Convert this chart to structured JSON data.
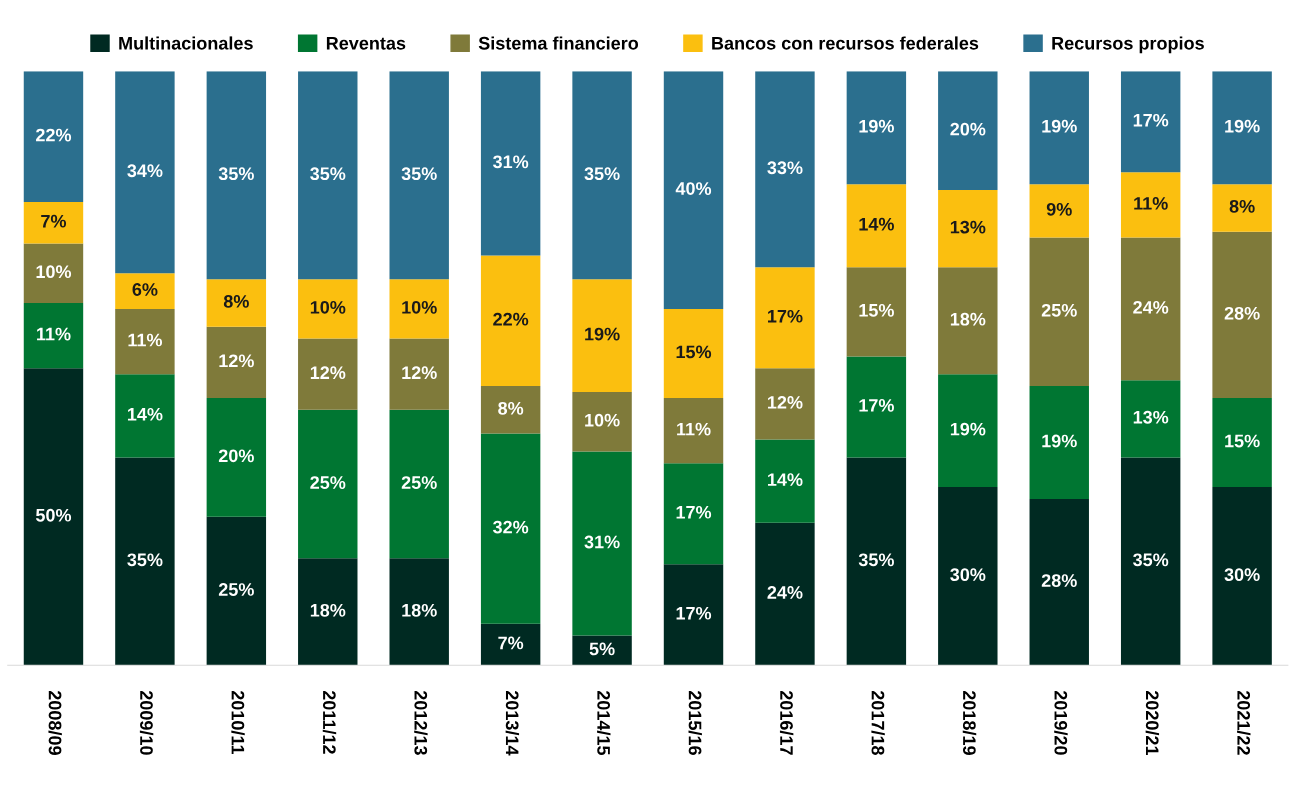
{
  "chart_data": {
    "type": "bar",
    "stacked": true,
    "ylim": [
      0,
      100
    ],
    "tick_labels": "x",
    "legend": "top",
    "grid": false,
    "categories": [
      "2008/09",
      "2009/10",
      "2010/11",
      "2011/12",
      "2012/13",
      "2013/14",
      "2014/15",
      "2015/16",
      "2016/17",
      "2017/18",
      "2018/19",
      "2019/20",
      "2020/21",
      "2021/22"
    ],
    "series": [
      {
        "name": "Multinacionales",
        "color": "#002a22",
        "values": [
          50,
          35,
          25,
          18,
          18,
          7,
          5,
          17,
          24,
          35,
          30,
          28,
          35,
          30
        ],
        "value_labels": [
          "50%",
          "35%",
          "25%",
          "18%",
          "18%",
          "7%",
          "5%",
          "17%",
          "24%",
          "35%",
          "30%",
          "28%",
          "35%",
          "30%"
        ]
      },
      {
        "name": "Reventas",
        "color": "#007632",
        "values": [
          11,
          14,
          20,
          25,
          25,
          32,
          31,
          17,
          14,
          17,
          19,
          19,
          13,
          15
        ],
        "value_labels": [
          "11%",
          "14%",
          "20%",
          "25%",
          "25%",
          "32%",
          "31%",
          "17%",
          "14%",
          "17%",
          "19%",
          "19%",
          "13%",
          "15%"
        ]
      },
      {
        "name": "Sistema financiero",
        "color": "#7f7a3a",
        "values": [
          10,
          11,
          12,
          12,
          12,
          8,
          10,
          11,
          12,
          15,
          18,
          25,
          24,
          28
        ],
        "value_labels": [
          "10%",
          "11%",
          "12%",
          "12%",
          "12%",
          "8%",
          "10%",
          "11%",
          "12%",
          "15%",
          "18%",
          "25%",
          "24%",
          "28%"
        ]
      },
      {
        "name": "Bancos con recursos federales",
        "color": "#fbbf0f",
        "values": [
          7,
          6,
          8,
          10,
          10,
          22,
          19,
          15,
          17,
          14,
          13,
          9,
          11,
          8
        ],
        "value_labels": [
          "7%",
          "6%",
          "8%",
          "10%",
          "10%",
          "22%",
          "19%",
          "15%",
          "17%",
          "14%",
          "13%",
          "9%",
          "11%",
          "8%"
        ]
      },
      {
        "name": "Recursos propios",
        "color": "#2b6f8e",
        "values": [
          22,
          34,
          35,
          35,
          35,
          31,
          35,
          40,
          33,
          19,
          20,
          19,
          17,
          19
        ],
        "value_labels": [
          "22%",
          "34%",
          "35%",
          "35%",
          "35%",
          "31%",
          "35%",
          "40%",
          "33%",
          "19%",
          "20%",
          "19%",
          "17%",
          "19%"
        ]
      }
    ]
  }
}
